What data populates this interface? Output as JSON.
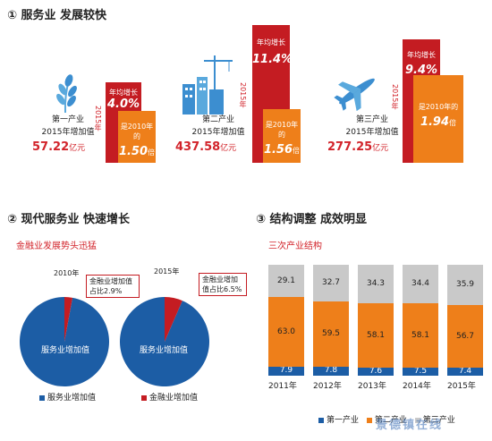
{
  "section1": {
    "title": "① 服务业  发展较快",
    "industries": [
      {
        "name": "第一产业",
        "subtitle": "2015年增加值",
        "value": "57.22",
        "unit": "亿元",
        "year_label": "2015年",
        "growth_label": "年均增长",
        "growth": "4.0%",
        "ratio_label": "是2010年的",
        "ratio": "1.50",
        "ratio_unit": "倍"
      },
      {
        "name": "第二产业",
        "subtitle": "2015年增加值",
        "value": "437.58",
        "unit": "亿元",
        "year_label": "2015年",
        "growth_label": "年均增长",
        "growth": "11.4%",
        "ratio_label": "是2010年的",
        "ratio": "1.56",
        "ratio_unit": "倍"
      },
      {
        "name": "第三产业",
        "subtitle": "2015年增加值",
        "value": "277.25",
        "unit": "亿元",
        "year_label": "2015年",
        "growth_label": "年均增长",
        "growth": "9.4%",
        "ratio_label": "是2010年的",
        "ratio": "1.94",
        "ratio_unit": "倍"
      }
    ]
  },
  "section2": {
    "title": "② 现代服务业  快速增长",
    "subtitle": "金融业发展势头迅猛"
  },
  "section3": {
    "title": "③ 结构调整  成效明显",
    "subtitle": "三次产业结构"
  },
  "colors": {
    "red": "#c41c22",
    "orange": "#ee7f1a",
    "blue": "#1c5da5",
    "gray": "#c9c9c9"
  },
  "watermark": "景德镇在线",
  "chart_data": [
    {
      "type": "pie",
      "title": "2010年",
      "slices": [
        {
          "label": "服务业增加值",
          "value": 97.1
        },
        {
          "label": "金融业增加值",
          "value": 2.9
        }
      ],
      "callout": "金融业增加值占比2.9%",
      "center_label": "服务业增加值"
    },
    {
      "type": "pie",
      "title": "2015年",
      "slices": [
        {
          "label": "服务业增加值",
          "value": 93.5
        },
        {
          "label": "金融业增加值",
          "value": 6.5
        }
      ],
      "callout": "金融业增加值占比6.5%",
      "center_label": "服务业增加值"
    },
    {
      "type": "bar",
      "stacked": true,
      "categories": [
        "2011年",
        "2012年",
        "2013年",
        "2014年",
        "2015年"
      ],
      "series": [
        {
          "name": "第一产业",
          "values": [
            7.9,
            7.8,
            7.6,
            7.5,
            7.4
          ]
        },
        {
          "name": "第二产业",
          "values": [
            63.0,
            59.5,
            58.1,
            58.1,
            56.7
          ]
        },
        {
          "name": "第三产业",
          "values": [
            29.1,
            32.7,
            34.3,
            34.4,
            35.9
          ]
        }
      ],
      "ylim": [
        0,
        100
      ],
      "legend": "bottom"
    }
  ],
  "pie_legend": [
    "服务业增加值",
    "金融业增加值"
  ]
}
